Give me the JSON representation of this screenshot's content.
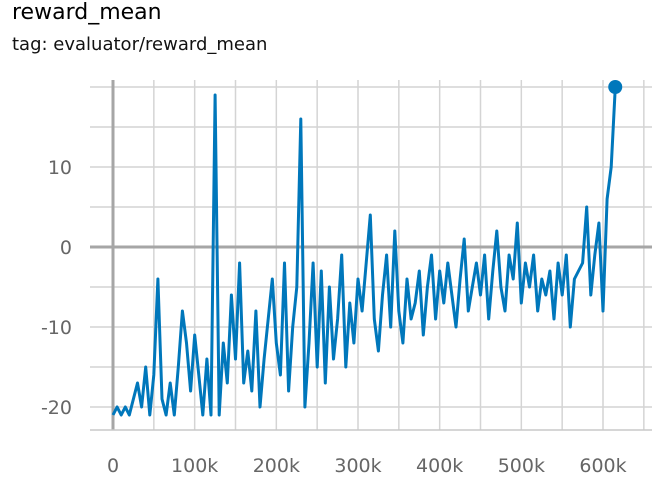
{
  "card": {
    "title": "reward_mean",
    "subtitle": "tag: evaluator/reward_mean"
  },
  "chart_data": {
    "type": "line",
    "title": "reward_mean",
    "subtitle": "tag: evaluator/reward_mean",
    "xlabel": "",
    "ylabel": "",
    "xlim": [
      -25000,
      660000
    ],
    "ylim": [
      -23,
      21
    ],
    "grid": true,
    "x_ticks": [
      {
        "value": 0,
        "label": "0"
      },
      {
        "value": 100000,
        "label": "100k"
      },
      {
        "value": 200000,
        "label": "200k"
      },
      {
        "value": 300000,
        "label": "300k"
      },
      {
        "value": 400000,
        "label": "400k"
      },
      {
        "value": 500000,
        "label": "500k"
      },
      {
        "value": 600000,
        "label": "600k"
      }
    ],
    "y_ticks": [
      {
        "value": -20,
        "label": "-20"
      },
      {
        "value": -10,
        "label": "-10"
      },
      {
        "value": 0,
        "label": "0"
      },
      {
        "value": 10,
        "label": "10"
      }
    ],
    "color": "#0077bb",
    "series": [
      {
        "name": "",
        "x": [
          0,
          5000,
          10000,
          15000,
          20000,
          25000,
          30000,
          35000,
          40000,
          45000,
          50000,
          55000,
          60000,
          65000,
          70000,
          75000,
          80000,
          85000,
          90000,
          95000,
          100000,
          105000,
          110000,
          115000,
          120000,
          125000,
          130000,
          135000,
          140000,
          145000,
          150000,
          155000,
          160000,
          165000,
          170000,
          175000,
          180000,
          185000,
          190000,
          195000,
          200000,
          205000,
          210000,
          215000,
          220000,
          225000,
          230000,
          235000,
          240000,
          245000,
          250000,
          255000,
          260000,
          265000,
          270000,
          275000,
          280000,
          285000,
          290000,
          295000,
          300000,
          305000,
          310000,
          315000,
          320000,
          325000,
          330000,
          335000,
          340000,
          345000,
          350000,
          355000,
          360000,
          365000,
          370000,
          375000,
          380000,
          385000,
          390000,
          395000,
          400000,
          405000,
          410000,
          415000,
          420000,
          425000,
          430000,
          435000,
          440000,
          445000,
          450000,
          455000,
          460000,
          465000,
          470000,
          475000,
          480000,
          485000,
          490000,
          495000,
          500000,
          505000,
          510000,
          515000,
          520000,
          525000,
          530000,
          535000,
          540000,
          545000,
          550000,
          555000,
          560000,
          565000,
          570000,
          575000,
          580000,
          585000,
          590000,
          595000,
          600000,
          605000,
          610000,
          615000
        ],
        "y": [
          -21,
          -20,
          -21,
          -20,
          -21,
          -19,
          -17,
          -20,
          -15,
          -21,
          -16,
          -4,
          -19,
          -21,
          -17,
          -21,
          -15,
          -8,
          -12,
          -18,
          -11,
          -16,
          -21,
          -14,
          -21,
          19,
          -21,
          -12,
          -17,
          -6,
          -14,
          -2,
          -17,
          -13,
          -18,
          -8,
          -20,
          -14,
          -9,
          -4,
          -12,
          -16,
          -2,
          -18,
          -10,
          -5,
          16,
          -20,
          -12,
          -2,
          -15,
          -3,
          -17,
          -5,
          -14,
          -9,
          -1,
          -15,
          -7,
          -12,
          -4,
          -8,
          -2,
          4,
          -9,
          -13,
          -6,
          -1,
          -10,
          2,
          -8,
          -12,
          -4,
          -9,
          -7,
          -3,
          -11,
          -5,
          -1,
          -9,
          -3,
          -7,
          -2,
          -6,
          -10,
          -4,
          1,
          -8,
          -5,
          -2,
          -6,
          -1,
          -9,
          -3,
          2,
          -5,
          -8,
          -1,
          -4,
          3,
          -7,
          -2,
          -5,
          -1,
          -8,
          -4,
          -6,
          -3,
          -9,
          -2,
          -6,
          -1,
          -10,
          -4,
          -3,
          -2,
          5,
          -6,
          -1,
          3,
          -8,
          6,
          10,
          20
        ]
      }
    ]
  }
}
